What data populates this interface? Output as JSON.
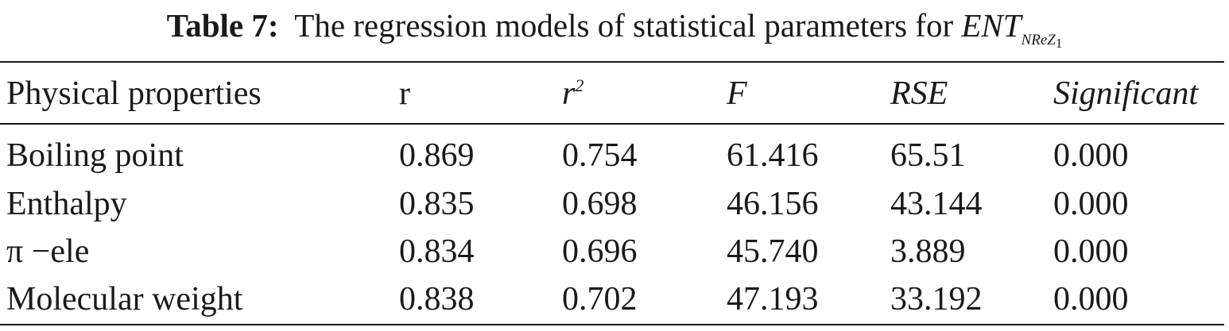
{
  "caption": {
    "label": "Table 7:",
    "text": "The regression models of statistical parameters for",
    "symbol": "ENT",
    "subscript": "NReZ",
    "subscript_index": "1"
  },
  "table": {
    "headers": {
      "property": "Physical properties",
      "r": "r",
      "r2_base": "r",
      "r2_exp": "2",
      "f": "F",
      "rse": "RSE",
      "significant": "Significant"
    },
    "rows": [
      {
        "property": "Boiling point",
        "r": "0.869",
        "r2": "0.754",
        "f": "61.416",
        "rse": "65.51",
        "significant": "0.000"
      },
      {
        "property": "Enthalpy",
        "r": "0.835",
        "r2": "0.698",
        "f": "46.156",
        "rse": "43.144",
        "significant": "0.000"
      },
      {
        "property": "π −ele",
        "r": "0.834",
        "r2": "0.696",
        "f": "45.740",
        "rse": "3.889",
        "significant": "0.000"
      },
      {
        "property": "Molecular weight",
        "r": "0.838",
        "r2": "0.702",
        "f": "47.193",
        "rse": "33.192",
        "significant": "0.000"
      }
    ]
  }
}
